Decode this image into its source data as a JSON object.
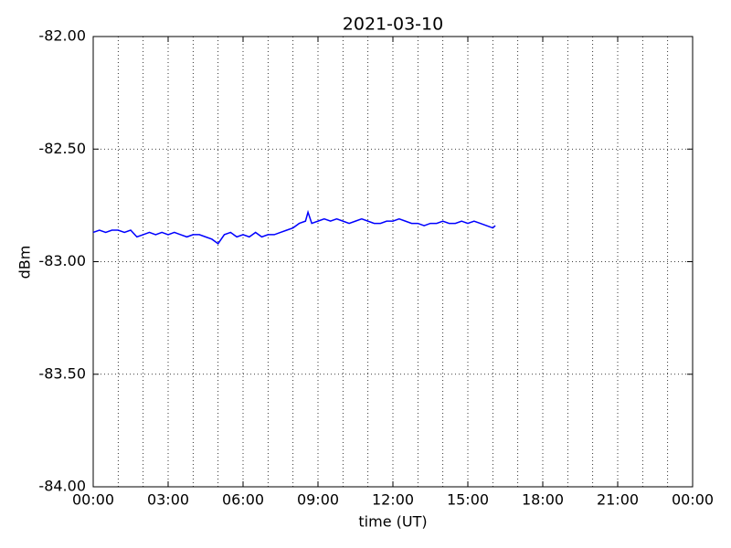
{
  "chart_data": {
    "type": "line",
    "title": "2021-03-10",
    "x_label": "time (UT)",
    "y_label": "dBm",
    "xlim": [
      0,
      24
    ],
    "xticks": [
      {
        "value": 0,
        "label": "00:00"
      },
      {
        "value": 3,
        "label": "03:00"
      },
      {
        "value": 6,
        "label": "06:00"
      },
      {
        "value": 9,
        "label": "09:00"
      },
      {
        "value": 12,
        "label": "12:00"
      },
      {
        "value": 15,
        "label": "15:00"
      },
      {
        "value": 18,
        "label": "18:00"
      },
      {
        "value": 21,
        "label": "21:00"
      },
      {
        "value": 24,
        "label": "00:00"
      }
    ],
    "x_minor_ticks": [
      1,
      2,
      4,
      5,
      7,
      8,
      10,
      11,
      13,
      14,
      16,
      17,
      19,
      20,
      22,
      23
    ],
    "ylim": [
      -84,
      -82
    ],
    "yticks": [
      {
        "value": -84,
        "label": "-84.00"
      },
      {
        "value": -83.5,
        "label": "-83.50"
      },
      {
        "value": -83,
        "label": "-83.00"
      },
      {
        "value": -82.5,
        "label": "-82.50"
      },
      {
        "value": -82,
        "label": "-82.00"
      }
    ],
    "grid": true,
    "series": [
      {
        "color": "#0000ff",
        "x": [
          0,
          0.25,
          0.5,
          0.75,
          1.0,
          1.25,
          1.5,
          1.75,
          2.0,
          2.25,
          2.5,
          2.75,
          3.0,
          3.25,
          3.5,
          3.75,
          4.0,
          4.25,
          4.5,
          4.75,
          5.0,
          5.25,
          5.5,
          5.75,
          6.0,
          6.25,
          6.5,
          6.75,
          7.0,
          7.25,
          7.5,
          7.75,
          8.0,
          8.25,
          8.5,
          8.6,
          8.75,
          9.0,
          9.25,
          9.5,
          9.75,
          10.0,
          10.25,
          10.5,
          10.75,
          11.0,
          11.25,
          11.5,
          11.75,
          12.0,
          12.25,
          12.5,
          12.75,
          13.0,
          13.25,
          13.5,
          13.75,
          14.0,
          14.25,
          14.5,
          14.75,
          15.0,
          15.25,
          15.5,
          15.75,
          16.0,
          16.1
        ],
        "values": [
          -82.87,
          -82.86,
          -82.87,
          -82.86,
          -82.86,
          -82.87,
          -82.86,
          -82.89,
          -82.88,
          -82.87,
          -82.88,
          -82.87,
          -82.88,
          -82.87,
          -82.88,
          -82.89,
          -82.88,
          -82.88,
          -82.89,
          -82.9,
          -82.92,
          -82.88,
          -82.87,
          -82.89,
          -82.88,
          -82.89,
          -82.87,
          -82.89,
          -82.88,
          -82.88,
          -82.87,
          -82.86,
          -82.85,
          -82.83,
          -82.82,
          -82.78,
          -82.83,
          -82.82,
          -82.81,
          -82.82,
          -82.81,
          -82.82,
          -82.83,
          -82.82,
          -82.81,
          -82.82,
          -82.83,
          -82.83,
          -82.82,
          -82.82,
          -82.81,
          -82.82,
          -82.83,
          -82.83,
          -82.84,
          -82.83,
          -82.83,
          -82.82,
          -82.83,
          -82.83,
          -82.82,
          -82.83,
          -82.82,
          -82.83,
          -82.84,
          -82.85,
          -82.84
        ]
      }
    ]
  }
}
